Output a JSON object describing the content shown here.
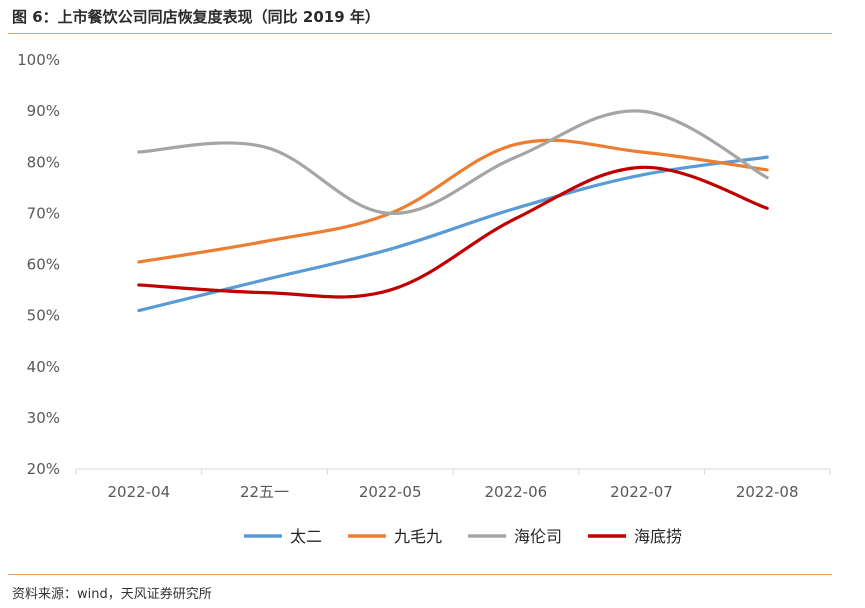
{
  "figure": {
    "title": "图 6：上市餐饮公司同店恢复度表现（同比 2019 年）",
    "source": "资料来源：wind，天风证券研究所"
  },
  "colors": {
    "accent_rule": "#e9a25c",
    "axis": "#d9d9d9",
    "tick_text": "#595959"
  },
  "chart_data": {
    "type": "line",
    "categories": [
      "2022-04",
      "22五一",
      "2022-05",
      "2022-06",
      "2022-07",
      "2022-08"
    ],
    "ylim": [
      0.2,
      1.0
    ],
    "yticks": [
      0.2,
      0.3,
      0.4,
      0.5,
      0.6,
      0.7,
      0.8,
      0.9,
      1.0
    ],
    "ytick_labels": [
      "20%",
      "30%",
      "40%",
      "50%",
      "60%",
      "70%",
      "80%",
      "90%",
      "100%"
    ],
    "grid": false,
    "smooth": true,
    "legend_position": "bottom",
    "series": [
      {
        "name": "太二",
        "color": "#5b9bd5",
        "values": [
          0.51,
          0.57,
          0.63,
          0.71,
          0.775,
          0.81
        ]
      },
      {
        "name": "九毛九",
        "color": "#ed7d31",
        "values": [
          0.605,
          0.645,
          0.7,
          0.835,
          0.82,
          0.785
        ]
      },
      {
        "name": "海伦司",
        "color": "#a5a5a5",
        "values": [
          0.82,
          0.83,
          0.7,
          0.81,
          0.9,
          0.77
        ]
      },
      {
        "name": "海底捞",
        "color": "#c00000",
        "values": [
          0.56,
          0.545,
          0.55,
          0.69,
          0.79,
          0.71
        ]
      }
    ]
  }
}
